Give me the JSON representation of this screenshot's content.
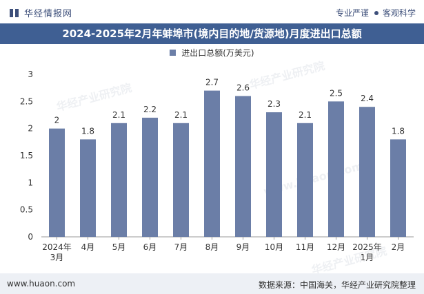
{
  "header": {
    "brand": "华经情报网",
    "slogan_left": "专业严谨",
    "slogan_right": "客观科学"
  },
  "title": "2024-2025年2月年蚌埠市(境内目的地/货源地)月度进出口总额",
  "legend": {
    "label": "进出口总额(万美元)"
  },
  "footer": {
    "website": "www.huaon.com",
    "source": "数据来源：中国海关，华经产业研究院整理"
  },
  "watermarks": [
    "华经产业研究院",
    "www.huaon.com"
  ],
  "colors": {
    "bar": "#6b7ea7",
    "title_bg": "#3f5f93",
    "footer_bg": "#edf0f5"
  },
  "chart_data": {
    "type": "bar",
    "title": "2024-2025年2月年蚌埠市(境内目的地/货源地)月度进出口总额",
    "categories": [
      [
        "2024年",
        "3月"
      ],
      [
        "4月"
      ],
      [
        "5月"
      ],
      [
        "6月"
      ],
      [
        "7月"
      ],
      [
        "8月"
      ],
      [
        "9月"
      ],
      [
        "10月"
      ],
      [
        "11月"
      ],
      [
        "12月"
      ],
      [
        "2025年",
        "1月"
      ],
      [
        "2月"
      ]
    ],
    "series": [
      {
        "name": "进出口总额(万美元)",
        "values": [
          2,
          1.8,
          2.1,
          2.2,
          2.1,
          2.7,
          2.6,
          2.3,
          2.1,
          2.5,
          2.4,
          1.8
        ]
      }
    ],
    "ylim": [
      0,
      3
    ],
    "yticks": [
      0,
      0.5,
      1,
      1.5,
      2,
      2.5,
      3
    ],
    "ytick_labels": [
      "0",
      "0.5",
      "1",
      "1.5",
      "2",
      "2.5",
      "3"
    ],
    "value_labels": [
      "2",
      "1.8",
      "2.1",
      "2.2",
      "2.1",
      "2.7",
      "2.6",
      "2.3",
      "2.1",
      "2.5",
      "2.4",
      "1.8"
    ],
    "grid": false,
    "legend_position": "top-center"
  }
}
